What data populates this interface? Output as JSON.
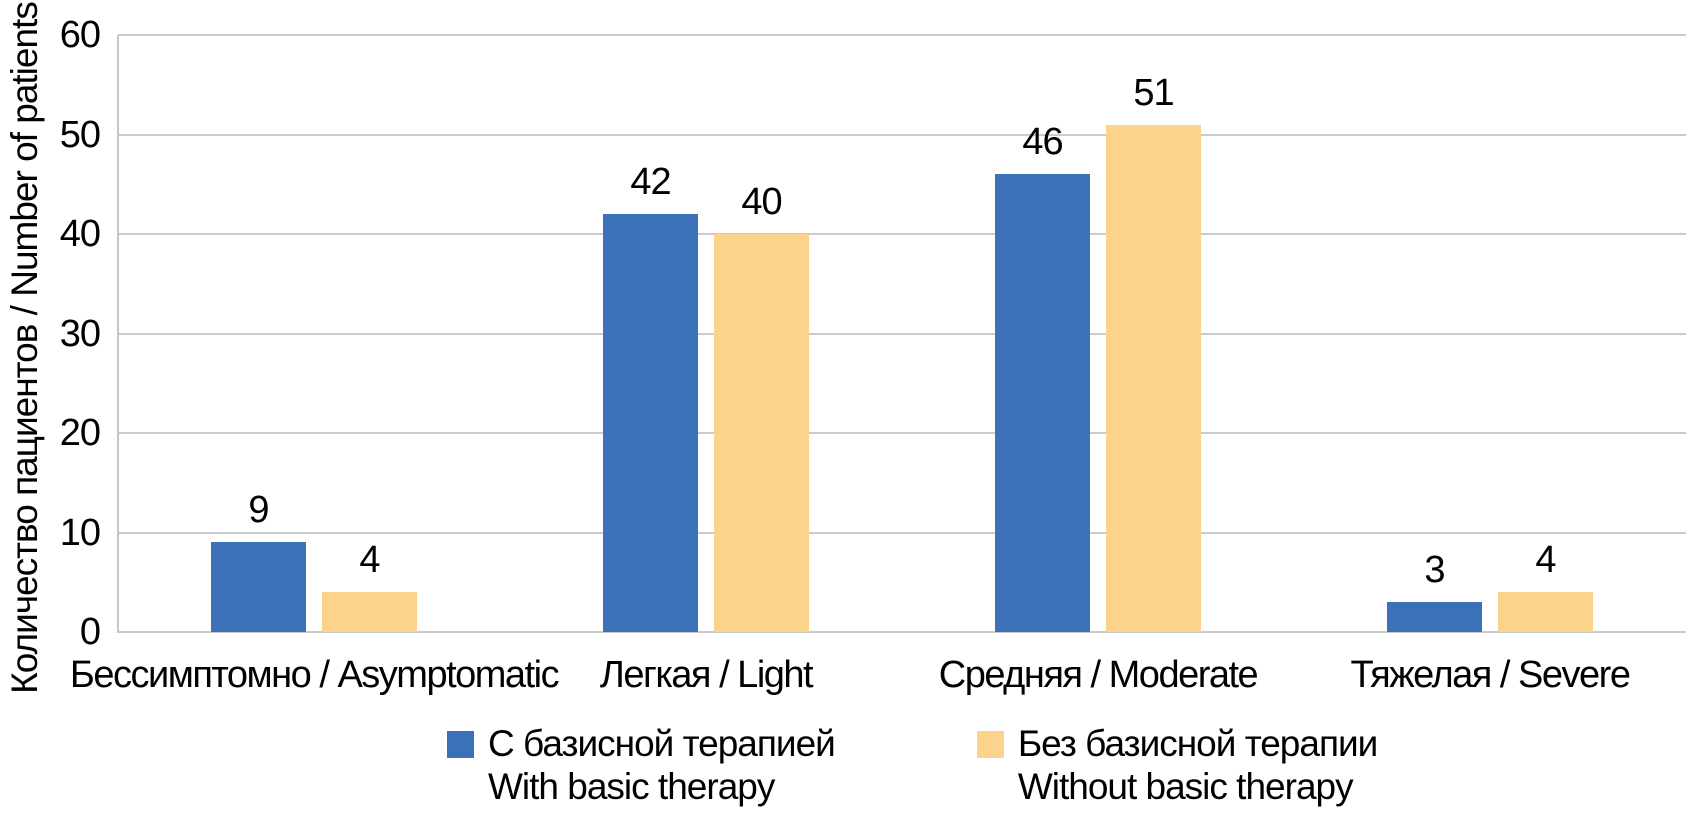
{
  "chart_data": {
    "type": "bar",
    "title": "",
    "xlabel": "",
    "ylabel": "Количество пациентов / Number of patients",
    "ylim": [
      0,
      60
    ],
    "yticks": [
      0,
      10,
      20,
      30,
      40,
      50,
      60
    ],
    "grid": true,
    "legend_position": "bottom",
    "categories": [
      "Бессимптомно / Asymptomatic",
      "Легкая / Light",
      "Средняя / Moderate",
      "Тяжелая / Severe"
    ],
    "series": [
      {
        "name": "С базисной терапией",
        "name_en": "With basic therapy",
        "color": "#3b72b7",
        "values": [
          9,
          42,
          46,
          3
        ]
      },
      {
        "name": "Без базисной терапии",
        "name_en": "Without basic therapy",
        "color": "#fbd38d",
        "values": [
          4,
          40,
          51,
          4
        ]
      }
    ]
  },
  "colors": {
    "background": "#ffffff",
    "gridline": "#cbcbcb",
    "axis_line": "#c6c6c6",
    "text": "#000000"
  }
}
